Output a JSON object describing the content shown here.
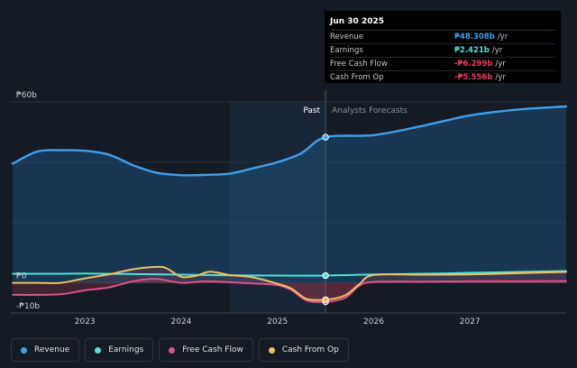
{
  "tooltip": {
    "date": "Jun 30 2025",
    "rows": [
      {
        "label": "Revenue",
        "value": "₱48.308b",
        "unit": "/yr",
        "color": "#3ea0f0"
      },
      {
        "label": "Earnings",
        "value": "₱2.421b",
        "unit": "/yr",
        "color": "#4fe0d6"
      },
      {
        "label": "Free Cash Flow",
        "value": "-₱6.299b",
        "unit": "/yr",
        "color": "#ef3c5c"
      },
      {
        "label": "Cash From Op",
        "value": "-₱5.556b",
        "unit": "/yr",
        "color": "#ef3c5c"
      }
    ]
  },
  "legend": [
    {
      "label": "Revenue",
      "color": "#3ea0f0"
    },
    {
      "label": "Earnings",
      "color": "#4fe0d6"
    },
    {
      "label": "Free Cash Flow",
      "color": "#e0508a"
    },
    {
      "label": "Cash From Op",
      "color": "#f0c060"
    }
  ],
  "chart_data": {
    "type": "line",
    "title": "",
    "past_label": "Past",
    "forecast_label": "Analysts Forecasts",
    "y_ticks": [
      {
        "value": 60,
        "label": "₱60b"
      },
      {
        "value": 0,
        "label": "₱0"
      },
      {
        "value": -10,
        "label": "-₱10b"
      }
    ],
    "x_ticks": [
      {
        "value": 2023,
        "label": "2023"
      },
      {
        "value": 2024,
        "label": "2024"
      },
      {
        "value": 2025,
        "label": "2025"
      },
      {
        "value": 2026,
        "label": "2026"
      },
      {
        "value": 2027,
        "label": "2027"
      }
    ],
    "xlim": [
      2022.23,
      2028.0
    ],
    "ylim": [
      -10,
      60
    ],
    "divider_x": 2025.5,
    "shade_start_x": 2024.5,
    "series": [
      {
        "name": "Revenue",
        "color": "#3ea0f0",
        "x": [
          2022.25,
          2022.5,
          2022.75,
          2023.0,
          2023.25,
          2023.5,
          2023.75,
          2024.0,
          2024.25,
          2024.5,
          2024.75,
          2025.0,
          2025.25,
          2025.5,
          2026.0,
          2026.5,
          2027.0,
          2027.5,
          2028.0
        ],
        "y": [
          39.5,
          43.5,
          44.0,
          43.8,
          42.5,
          39.0,
          36.5,
          35.7,
          35.8,
          36.2,
          38.0,
          40.0,
          43.0,
          48.3,
          49.0,
          52.0,
          55.5,
          57.5,
          58.5
        ]
      },
      {
        "name": "Earnings",
        "color": "#4fe0d6",
        "x": [
          2022.25,
          2022.5,
          2022.75,
          2023.0,
          2023.5,
          2024.0,
          2024.5,
          2025.0,
          2025.5,
          2026.0,
          2026.5,
          2027.0,
          2027.5,
          2028.0
        ],
        "y": [
          3.0,
          3.0,
          3.0,
          3.1,
          2.9,
          2.7,
          2.5,
          2.4,
          2.42,
          2.8,
          3.0,
          3.3,
          3.6,
          3.9
        ]
      },
      {
        "name": "Free Cash Flow",
        "color": "#e0508a",
        "x": [
          2022.25,
          2022.5,
          2022.75,
          2023.0,
          2023.25,
          2023.5,
          2023.75,
          2024.0,
          2024.25,
          2024.5,
          2024.75,
          2025.0,
          2025.15,
          2025.3,
          2025.5,
          2025.7,
          2025.85,
          2026.0,
          2026.5,
          2027.0,
          2027.5,
          2028.0
        ],
        "y": [
          -4.0,
          -4.0,
          -3.8,
          -2.5,
          -1.5,
          0.5,
          1.3,
          0.0,
          0.5,
          0.2,
          -0.2,
          -0.8,
          -2.5,
          -5.8,
          -6.3,
          -5.0,
          -1.0,
          0.3,
          0.4,
          0.5,
          0.5,
          0.6
        ]
      },
      {
        "name": "Cash From Op",
        "color": "#f0c060",
        "x": [
          2022.25,
          2022.5,
          2022.75,
          2023.0,
          2023.25,
          2023.5,
          2023.75,
          2023.85,
          2024.0,
          2024.15,
          2024.3,
          2024.5,
          2024.75,
          2025.0,
          2025.15,
          2025.3,
          2025.5,
          2025.7,
          2025.85,
          2026.0,
          2026.5,
          2027.0,
          2027.5,
          2028.0
        ],
        "y": [
          0.0,
          0.0,
          0.0,
          1.5,
          2.8,
          4.5,
          5.3,
          4.8,
          2.0,
          2.3,
          3.7,
          2.6,
          1.8,
          -0.3,
          -2.0,
          -5.3,
          -5.6,
          -4.2,
          -0.5,
          2.6,
          2.7,
          2.8,
          3.2,
          3.6
        ]
      }
    ]
  }
}
